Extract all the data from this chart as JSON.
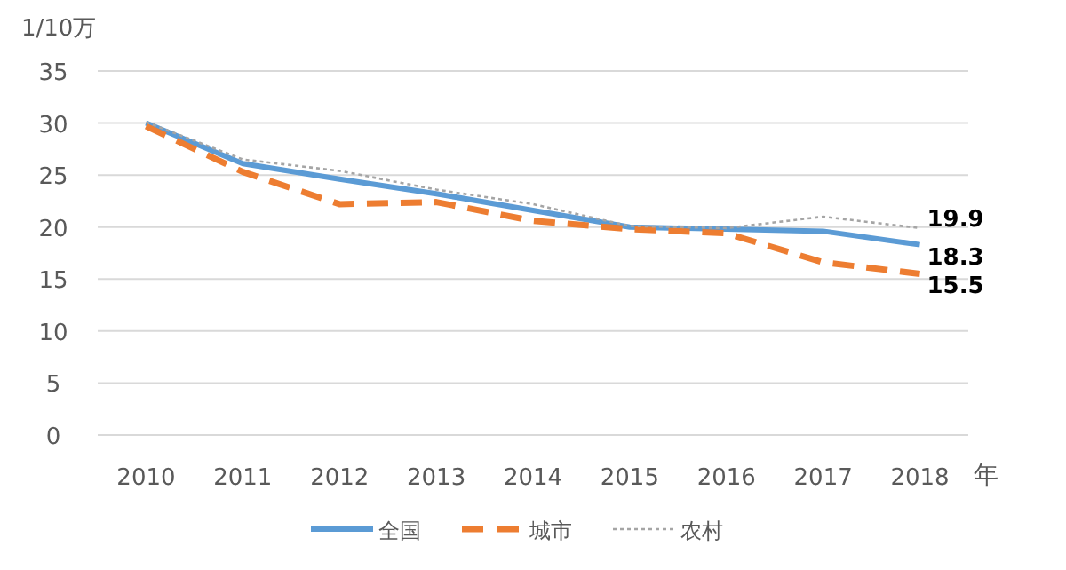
{
  "chart_data": {
    "type": "line",
    "ylabel": "1/10万",
    "xlabel": "年",
    "categories": [
      "2010",
      "2011",
      "2012",
      "2013",
      "2014",
      "2015",
      "2016",
      "2017",
      "2018"
    ],
    "series": [
      {
        "name": "全国",
        "color": "#5b9bd5",
        "line_style": "solid",
        "values": [
          30.0,
          26.1,
          24.6,
          23.2,
          21.6,
          20.0,
          19.8,
          19.6,
          18.3
        ],
        "value_labels": [
          null,
          null,
          null,
          null,
          null,
          null,
          null,
          null,
          "18.3"
        ]
      },
      {
        "name": "城市",
        "color": "#ed7d31",
        "line_style": "dashed",
        "values": [
          29.7,
          25.3,
          22.2,
          22.4,
          20.6,
          19.8,
          19.4,
          16.6,
          15.5
        ],
        "value_labels": [
          null,
          null,
          null,
          null,
          null,
          null,
          null,
          null,
          "15.5"
        ]
      },
      {
        "name": "农村",
        "color": "#a5a5a5",
        "line_style": "dotted",
        "values": [
          30.1,
          26.5,
          25.4,
          23.6,
          22.2,
          20.1,
          19.9,
          21.0,
          19.9
        ],
        "value_labels": [
          null,
          null,
          null,
          null,
          null,
          null,
          null,
          null,
          "19.9"
        ]
      }
    ],
    "ylim": [
      0,
      35
    ],
    "yticks": [
      0,
      5,
      10,
      15,
      20,
      25,
      30,
      35
    ],
    "grid": "y",
    "legend": "bottom",
    "marker": "none"
  }
}
